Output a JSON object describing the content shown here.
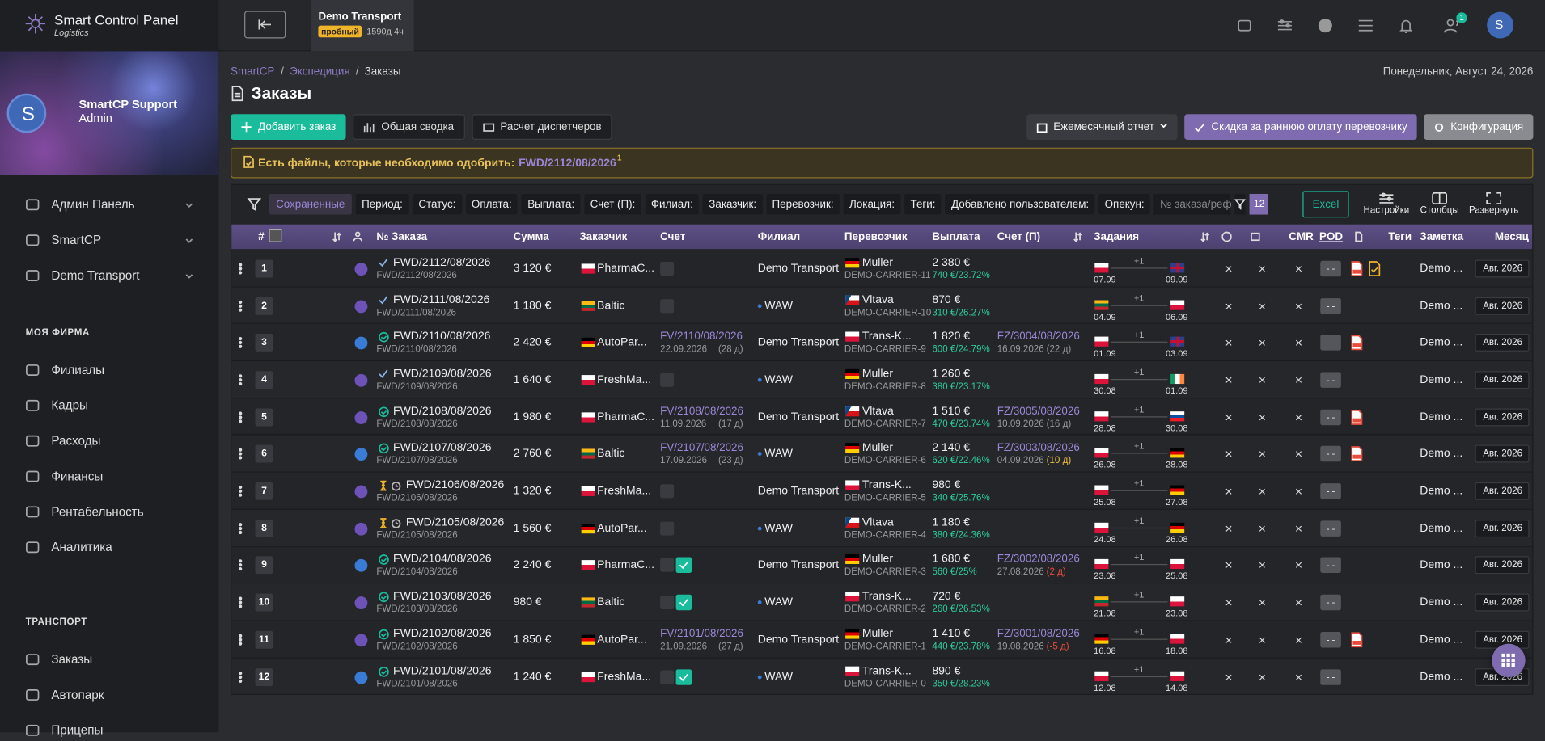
{
  "sidebar": {
    "brand": "Smart Control Panel",
    "brand_sub": "Logistics",
    "avatar": "S",
    "user": "SmartCP Support",
    "role": "Admin",
    "menu": [
      "Админ Панель",
      "SmartCP",
      "Demo Transport"
    ],
    "sections": [
      {
        "title": "МОЯ ФИРМА",
        "items": [
          "Филиалы",
          "Кадры",
          "Расходы",
          "Финансы",
          "Рентабельность",
          "Аналитика"
        ]
      },
      {
        "title": "ТРАНСПОРТ",
        "items": [
          "Заказы",
          "Автопарк",
          "Прицепы"
        ]
      }
    ]
  },
  "topbar": {
    "company": "Demo Transport",
    "badge": "пробный",
    "time_left": "1590д 4ч",
    "notifications": "1",
    "avatar": "S"
  },
  "breadcrumb": [
    "SmartCP",
    "Экспедиция",
    "Заказы"
  ],
  "breadcrumb_sep": "/",
  "date": "Понедельник, Август 24, 2026",
  "title": "Заказы",
  "actions": {
    "left": [
      "Добавить заказ",
      "Общая сводка",
      "Расчет диспетчеров"
    ],
    "right": [
      "Ежемесячный отчет",
      "Скидка за раннюю оплату перевозчику",
      "Конфигурация"
    ]
  },
  "alert": {
    "text": "Есть файлы, которые необходимо одобрить:",
    "link": "FWD/2112/08/2026",
    "count": "1"
  },
  "filters": {
    "saved": "Сохраненные",
    "items": [
      "Период:",
      "Статус:",
      "Оплата:",
      "Выплата:",
      "Счет (П):",
      "Филиал:",
      "Заказчик:",
      "Перевозчик:",
      "Локация:",
      "Теги:",
      "Добавлено пользователем:",
      "Опекун:"
    ],
    "search_placeholder": "№ заказа/реф",
    "count": "12",
    "excel": "Excel",
    "tools": [
      "Настройки",
      "Столбцы",
      "Развернуть"
    ]
  },
  "table": {
    "headers": [
      "#",
      "№ Заказа",
      "Сумма",
      "Заказчик",
      "Счет",
      "Филиал",
      "Перевозчик",
      "Выплата",
      "Счет (П)",
      "Задания",
      "CMR",
      "POD",
      "Теги",
      "Заметка",
      "Месяц"
    ],
    "empty_mark": "×",
    "pod_placeholder": "- -",
    "rows": [
      {
        "n": "1",
        "status": "check",
        "order": "FWD/2112/08/2026",
        "ref": "FWD/2112/08/2026",
        "amount": "3 120 €",
        "client": "PharmaC...",
        "cflag": "pl",
        "inv": null,
        "branch": "Demo Transport",
        "carrier": "Muller",
        "kflag": "de",
        "carrier_code": "DEMO-CARRIER-11",
        "payout": "2 380 €",
        "margin": "740 €/23.72%",
        "cinv": null,
        "from_date": "07.09",
        "from_flag": "pl",
        "to_date": "09.09",
        "to_flag": "gb",
        "extra": "+1",
        "pdf": true,
        "doc": true,
        "note": "Demo ...",
        "month": "Авг. 2026"
      },
      {
        "n": "2",
        "status": "check",
        "order": "FWD/2111/08/2026",
        "ref": "FWD/2111/08/2026",
        "amount": "1 180 €",
        "client": "Baltic",
        "cflag": "lt",
        "inv": null,
        "branch": "WAW",
        "carrier": "Vltava",
        "kflag": "cz",
        "carrier_code": "DEMO-CARRIER-10",
        "payout": "870 €",
        "margin": "310 €/26.27%",
        "cinv": null,
        "from_date": "04.09",
        "from_flag": "lt",
        "to_date": "06.09",
        "to_flag": "pl",
        "extra": "+1",
        "note": "Demo ...",
        "month": "Авг. 2026"
      },
      {
        "n": "3",
        "status": "done",
        "order": "FWD/2110/08/2026",
        "ref": "FWD/2110/08/2026",
        "amount": "2 420 €",
        "client": "AutoPar...",
        "cflag": "de",
        "inv": "FV/2110/08/2026",
        "inv_date": "22.09.2026",
        "inv_days": "(28 д)",
        "branch": "Demo Transport",
        "carrier": "Trans-K...",
        "kflag": "pl",
        "carrier_code": "DEMO-CARRIER-9",
        "payout": "1 820 €",
        "margin": "600 €/24.79%",
        "cinv": "FZ/3004/08/2026",
        "cinv_date": "16.09.2026",
        "cinv_days": "(22 д)",
        "from_date": "01.09",
        "from_flag": "pl",
        "to_date": "03.09",
        "to_flag": "gb",
        "extra": "+1",
        "pdf": true,
        "note": "Demo ...",
        "month": "Авг. 2026"
      },
      {
        "n": "4",
        "status": "check",
        "order": "FWD/2109/08/2026",
        "ref": "FWD/2109/08/2026",
        "amount": "1 640 €",
        "client": "FreshMa...",
        "cflag": "pl",
        "inv": null,
        "branch": "WAW",
        "carrier": "Muller",
        "kflag": "de",
        "carrier_code": "DEMO-CARRIER-8",
        "payout": "1 260 €",
        "margin": "380 €/23.17%",
        "cinv": null,
        "from_date": "30.08",
        "from_flag": "pl",
        "to_date": "01.09",
        "to_flag": "ie",
        "extra": "+1",
        "note": "Demo ...",
        "month": "Авг. 2026"
      },
      {
        "n": "5",
        "status": "done",
        "order": "FWD/2108/08/2026",
        "ref": "FWD/2108/08/2026",
        "amount": "1 980 €",
        "client": "PharmaC...",
        "cflag": "pl",
        "inv": "FV/2108/08/2026",
        "inv_date": "11.09.2026",
        "inv_days": "(17 д)",
        "branch": "Demo Transport",
        "carrier": "Vltava",
        "kflag": "cz",
        "carrier_code": "DEMO-CARRIER-7",
        "payout": "1 510 €",
        "margin": "470 €/23.74%",
        "cinv": "FZ/3005/08/2026",
        "cinv_date": "10.09.2026",
        "cinv_days": "(16 д)",
        "from_date": "28.08",
        "from_flag": "pl",
        "to_date": "30.08",
        "to_flag": "sk",
        "extra": "+1",
        "pdf": true,
        "note": "Demo ...",
        "month": "Авг. 2026"
      },
      {
        "n": "6",
        "status": "done",
        "order": "FWD/2107/08/2026",
        "ref": "FWD/2107/08/2026",
        "amount": "2 760 €",
        "client": "Baltic",
        "cflag": "lt",
        "inv": "FV/2107/08/2026",
        "inv_date": "17.09.2026",
        "inv_days": "(23 д)",
        "branch": "WAW",
        "carrier": "Muller",
        "kflag": "de",
        "carrier_code": "DEMO-CARRIER-6",
        "payout": "2 140 €",
        "margin": "620 €/22.46%",
        "cinv": "FZ/3003/08/2026",
        "cinv_date": "04.09.2026",
        "cinv_days": "(10 д)",
        "cinv_days_color": "#f0c040",
        "from_date": "26.08",
        "from_flag": "pl",
        "to_date": "28.08",
        "to_flag": "de",
        "extra": "+1",
        "pdf": true,
        "note": "Demo ...",
        "month": "Авг. 2026"
      },
      {
        "n": "7",
        "status": "pending",
        "order": "FWD/2106/08/2026",
        "ref": "FWD/2106/08/2026",
        "amount": "1 320 €",
        "client": "FreshMa...",
        "cflag": "pl",
        "inv": null,
        "branch": "Demo Transport",
        "carrier": "Trans-K...",
        "kflag": "pl",
        "carrier_code": "DEMO-CARRIER-5",
        "payout": "980 €",
        "margin": "340 €/25.76%",
        "cinv": null,
        "from_date": "25.08",
        "from_flag": "pl",
        "to_date": "27.08",
        "to_flag": "de",
        "extra": "+1",
        "note": "Demo ...",
        "month": "Авг. 2026"
      },
      {
        "n": "8",
        "status": "pending",
        "order": "FWD/2105/08/2026",
        "ref": "FWD/2105/08/2026",
        "amount": "1 560 €",
        "client": "AutoPar...",
        "cflag": "de",
        "inv": null,
        "branch": "WAW",
        "carrier": "Vltava",
        "kflag": "cz",
        "carrier_code": "DEMO-CARRIER-4",
        "payout": "1 180 €",
        "margin": "380 €/24.36%",
        "cinv": null,
        "from_date": "24.08",
        "from_flag": "pl",
        "to_date": "26.08",
        "to_flag": "de",
        "extra": "+1",
        "note": "Demo ...",
        "month": "Авг. 2026"
      },
      {
        "n": "9",
        "status": "done",
        "order": "FWD/2104/08/2026",
        "ref": "FWD/2104/08/2026",
        "amount": "2 240 €",
        "client": "PharmaC...",
        "cflag": "pl",
        "inv": null,
        "inv_paid": true,
        "branch": "Demo Transport",
        "carrier": "Muller",
        "kflag": "de",
        "carrier_code": "DEMO-CARRIER-3",
        "payout": "1 680 €",
        "margin": "560 €/25%",
        "cinv": "FZ/3002/08/2026",
        "cinv_date": "27.08.2026",
        "cinv_days": "(2 д)",
        "cinv_days_color": "#e74c3c",
        "from_date": "23.08",
        "from_flag": "pl",
        "to_date": "25.08",
        "to_flag": "pl",
        "extra": "+1",
        "note": "Demo ...",
        "month": "Авг. 2026"
      },
      {
        "n": "10",
        "status": "done",
        "order": "FWD/2103/08/2026",
        "ref": "FWD/2103/08/2026",
        "amount": "980 €",
        "client": "Baltic",
        "cflag": "lt",
        "inv": null,
        "inv_paid": true,
        "branch": "WAW",
        "carrier": "Trans-K...",
        "kflag": "pl",
        "carrier_code": "DEMO-CARRIER-2",
        "payout": "720 €",
        "margin": "260 €/26.53%",
        "cinv": null,
        "from_date": "21.08",
        "from_flag": "lt",
        "to_date": "23.08",
        "to_flag": "pl",
        "extra": "+1",
        "note": "Demo ...",
        "month": "Авг. 2026"
      },
      {
        "n": "11",
        "status": "done",
        "order": "FWD/2102/08/2026",
        "ref": "FWD/2102/08/2026",
        "amount": "1 850 €",
        "client": "AutoPar...",
        "cflag": "de",
        "inv": "FV/2101/08/2026",
        "inv_date": "21.09.2026",
        "inv_days": "(27 д)",
        "branch": "Demo Transport",
        "carrier": "Muller",
        "kflag": "de",
        "carrier_code": "DEMO-CARRIER-1",
        "payout": "1 410 €",
        "margin": "440 €/23.78%",
        "cinv": "FZ/3001/08/2026",
        "cinv_date": "19.08.2026",
        "cinv_days": "(-5 д)",
        "cinv_days_color": "#e74c3c",
        "from_date": "16.08",
        "from_flag": "de",
        "to_date": "18.08",
        "to_flag": "pl",
        "extra": "+1",
        "pdf": true,
        "note": "Demo ...",
        "month": "Авг. 2026"
      },
      {
        "n": "12",
        "status": "done",
        "order": "FWD/2101/08/2026",
        "ref": "FWD/2101/08/2026",
        "amount": "1 240 €",
        "client": "FreshMa...",
        "cflag": "pl",
        "inv": null,
        "inv_paid": true,
        "branch": "WAW",
        "carrier": "Trans-K...",
        "kflag": "pl",
        "carrier_code": "DEMO-CARRIER-0",
        "payout": "890 €",
        "margin": "350 €/28.23%",
        "cinv": null,
        "from_date": "12.08",
        "from_flag": "pl",
        "to_date": "14.08",
        "to_flag": "pl",
        "extra": "+1",
        "note": "Demo ...",
        "month": "Авг. 2026"
      }
    ]
  }
}
